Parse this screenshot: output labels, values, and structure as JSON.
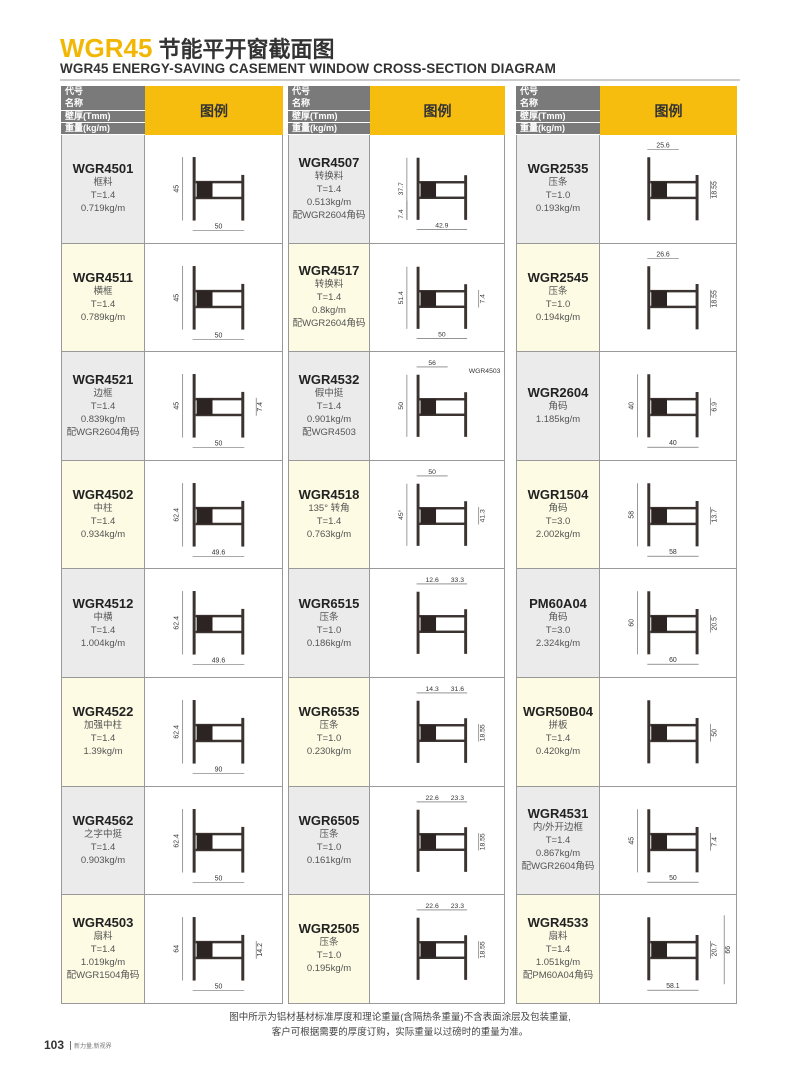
{
  "header": {
    "title_en": "WGR45",
    "title_cn": "节能平开窗截面图",
    "subtitle": "WGR45 ENERGY-SAVING CASEMENT WINDOW CROSS-SECTION DIAGRAM"
  },
  "table_header": {
    "labels": [
      "代号",
      "名称",
      "壁厚(Tmm)",
      "重量(kg/m)"
    ],
    "legend": "图例"
  },
  "columns": [
    {
      "items": [
        {
          "code": "WGR4501",
          "name": "框料",
          "t": "T=1.4",
          "w": "0.719kg/m",
          "dims": [
            {
              "label": "45",
              "pos": "left"
            },
            {
              "label": "50",
              "pos": "bottom"
            }
          ]
        },
        {
          "code": "WGR4511",
          "name": "横框",
          "t": "T=1.4",
          "w": "0.789kg/m",
          "dims": [
            {
              "label": "45",
              "pos": "left"
            },
            {
              "label": "50",
              "pos": "bottom"
            }
          ]
        },
        {
          "code": "WGR4521",
          "name": "边框",
          "t": "T=1.4",
          "w": "0.839kg/m",
          "note": "配WGR2604角码",
          "dims": [
            {
              "label": "45",
              "pos": "left"
            },
            {
              "label": "50",
              "pos": "bottom"
            },
            {
              "label": "7.4",
              "pos": "right"
            }
          ]
        },
        {
          "code": "WGR4502",
          "name": "中柱",
          "t": "T=1.4",
          "w": "0.934kg/m",
          "dims": [
            {
              "label": "62.4",
              "pos": "left"
            },
            {
              "label": "49.6",
              "pos": "bottom"
            }
          ]
        },
        {
          "code": "WGR4512",
          "name": "中横",
          "t": "T=1.4",
          "w": "1.004kg/m",
          "dims": [
            {
              "label": "62.4",
              "pos": "left"
            },
            {
              "label": "49.6",
              "pos": "bottom"
            }
          ]
        },
        {
          "code": "WGR4522",
          "name": "加强中柱",
          "t": "T=1.4",
          "w": "1.39kg/m",
          "dims": [
            {
              "label": "62.4",
              "pos": "left"
            },
            {
              "label": "90",
              "pos": "bottom"
            }
          ]
        },
        {
          "code": "WGR4562",
          "name": "之字中挺",
          "t": "T=1.4",
          "w": "0.903kg/m",
          "dims": [
            {
              "label": "62.4",
              "pos": "left"
            },
            {
              "label": "50",
              "pos": "bottom"
            }
          ]
        },
        {
          "code": "WGR4503",
          "name": "扇料",
          "t": "T=1.4",
          "w": "1.019kg/m",
          "note": "配WGR1504角码",
          "dims": [
            {
              "label": "64",
              "pos": "left"
            },
            {
              "label": "50",
              "pos": "bottom"
            },
            {
              "label": "14.2",
              "pos": "right"
            }
          ]
        }
      ]
    },
    {
      "items": [
        {
          "code": "WGR4507",
          "name": "转换料",
          "t": "T=1.4",
          "w": "0.513kg/m",
          "note": "配WGR2604角码",
          "dims": [
            {
              "label": "37.7",
              "pos": "left"
            },
            {
              "label": "42.9",
              "pos": "bottom"
            },
            {
              "label": "7.4",
              "pos": "left-low"
            }
          ]
        },
        {
          "code": "WGR4517",
          "name": "转换料",
          "t": "T=1.4",
          "w": "0.8kg/m",
          "note": "配WGR2604角码",
          "dims": [
            {
              "label": "51.4",
              "pos": "left"
            },
            {
              "label": "50",
              "pos": "bottom"
            },
            {
              "label": "7.4",
              "pos": "right"
            }
          ]
        },
        {
          "code": "WGR4532",
          "name": "假中挺",
          "t": "T=1.4",
          "w": "0.901kg/m",
          "note": "配WGR4503",
          "dims": [
            {
              "label": "50",
              "pos": "left"
            },
            {
              "label": "56",
              "pos": "top"
            },
            {
              "label": "WGR4503",
              "pos": "callout"
            }
          ]
        },
        {
          "code": "WGR4518",
          "name": "135° 转角",
          "t": "T=1.4",
          "w": "0.763kg/m",
          "dims": [
            {
              "label": "50",
              "pos": "top"
            },
            {
              "label": "45°",
              "pos": "left"
            },
            {
              "label": "41.3",
              "pos": "right"
            }
          ]
        },
        {
          "code": "WGR6515",
          "name": "压条",
          "t": "T=1.0",
          "w": "0.186kg/m",
          "dims": [
            {
              "label": "12.6",
              "pos": "top"
            },
            {
              "label": "33.3",
              "pos": "top2"
            }
          ]
        },
        {
          "code": "WGR6535",
          "name": "压条",
          "t": "T=1.0",
          "w": "0.230kg/m",
          "dims": [
            {
              "label": "14.3",
              "pos": "top"
            },
            {
              "label": "31.6",
              "pos": "top2"
            },
            {
              "label": "18.55",
              "pos": "right"
            }
          ]
        },
        {
          "code": "WGR6505",
          "name": "压条",
          "t": "T=1.0",
          "w": "0.161kg/m",
          "dims": [
            {
              "label": "22.6",
              "pos": "top"
            },
            {
              "label": "23.3",
              "pos": "top2"
            },
            {
              "label": "18.55",
              "pos": "right"
            }
          ]
        },
        {
          "code": "WGR2505",
          "name": "压条",
          "t": "T=1.0",
          "w": "0.195kg/m",
          "dims": [
            {
              "label": "22.6",
              "pos": "top"
            },
            {
              "label": "23.3",
              "pos": "top2"
            },
            {
              "label": "18.55",
              "pos": "right"
            }
          ]
        }
      ]
    },
    {
      "items": [
        {
          "code": "WGR2535",
          "name": "压条",
          "t": "T=1.0",
          "w": "0.193kg/m",
          "dims": [
            {
              "label": "25.6",
              "pos": "top"
            },
            {
              "label": "18.55",
              "pos": "right"
            }
          ]
        },
        {
          "code": "WGR2545",
          "name": "压条",
          "t": "T=1.0",
          "w": "0.194kg/m",
          "dims": [
            {
              "label": "26.6",
              "pos": "top"
            },
            {
              "label": "18.55",
              "pos": "right"
            }
          ]
        },
        {
          "code": "WGR2604",
          "name": "角码",
          "w": "1.185kg/m",
          "dims": [
            {
              "label": "40",
              "pos": "left"
            },
            {
              "label": "40",
              "pos": "bottom"
            },
            {
              "label": "6.9",
              "pos": "right"
            }
          ]
        },
        {
          "code": "WGR1504",
          "name": "角码",
          "t": "T=3.0",
          "w": "2.002kg/m",
          "dims": [
            {
              "label": "58",
              "pos": "left"
            },
            {
              "label": "58",
              "pos": "bottom"
            },
            {
              "label": "13.7",
              "pos": "right"
            }
          ]
        },
        {
          "code": "PM60A04",
          "name": "角码",
          "t": "T=3.0",
          "w": "2.324kg/m",
          "dims": [
            {
              "label": "60",
              "pos": "left"
            },
            {
              "label": "60",
              "pos": "bottom"
            },
            {
              "label": "20.5",
              "pos": "right"
            }
          ]
        },
        {
          "code": "WGR50B04",
          "name": "拼板",
          "t": "T=1.4",
          "w": "0.420kg/m",
          "dims": [
            {
              "label": "50",
              "pos": "right"
            }
          ]
        },
        {
          "code": "WGR4531",
          "name": "内/外开边框",
          "t": "T=1.4",
          "w": "0.867kg/m",
          "note": "配WGR2604角码",
          "dims": [
            {
              "label": "45",
              "pos": "left"
            },
            {
              "label": "50",
              "pos": "bottom"
            },
            {
              "label": "7.4",
              "pos": "right"
            }
          ]
        },
        {
          "code": "WGR4533",
          "name": "扇料",
          "t": "T=1.4",
          "w": "1.051kg/m",
          "note": "配PM60A04角码",
          "dims": [
            {
              "label": "58.1",
              "pos": "bottom"
            },
            {
              "label": "20.7",
              "pos": "right"
            },
            {
              "label": "66",
              "pos": "right2"
            }
          ]
        }
      ]
    }
  ],
  "footer": {
    "note_line1": "图中所示为铝材基材标准厚度和理论重量(含隔热条重量)不含表面涂层及包装重量,",
    "note_line2": "客户可根据需要的厚度订购，实际重量以过磅时的重量为准。",
    "page_number": "103",
    "slogan": "新力量,新视界"
  },
  "colors": {
    "accent": "#f6bd0f",
    "header_grey": "#7a7a7a",
    "row_grey": "#ebebeb",
    "row_yellow": "#fdfbe3",
    "profile": "#3a3330"
  }
}
